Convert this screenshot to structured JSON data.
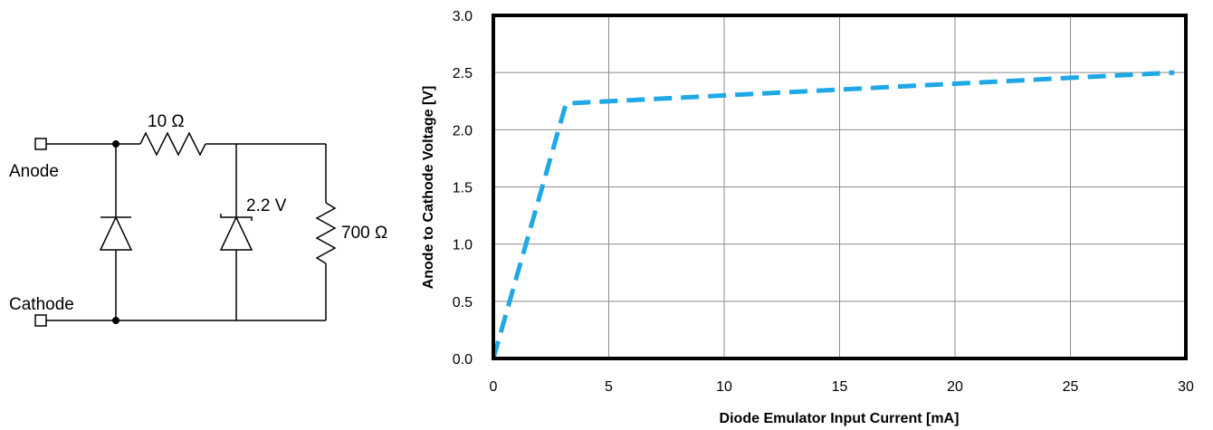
{
  "circuit": {
    "anode_label": "Anode",
    "cathode_label": "Cathode",
    "series_resistor_label": "10 Ω",
    "zener_label": "2.2 V",
    "shunt_resistor_label": "700 Ω"
  },
  "chart_data": {
    "type": "line",
    "xlabel": "Diode Emulator Input Current [mA]",
    "ylabel": "Anode to Cathode Voltage [V]",
    "xlim": [
      0,
      30
    ],
    "ylim": [
      0,
      3.0
    ],
    "x_ticks": [
      0,
      5,
      10,
      15,
      20,
      25,
      30
    ],
    "x_tick_labels": [
      "0",
      "5",
      "10",
      "15",
      "20",
      "25",
      "30"
    ],
    "y_ticks": [
      0,
      0.5,
      1.0,
      1.5,
      2.0,
      2.5,
      3.0
    ],
    "y_tick_labels": [
      "0.0",
      "0.5",
      "1.0",
      "1.5",
      "2.0",
      "2.5",
      "3.0"
    ],
    "grid": true,
    "line_style": "dashed",
    "series": [
      {
        "color": "#1FA8E6",
        "x": [
          0,
          3.15,
          29.5
        ],
        "y": [
          0,
          2.23,
          2.5
        ]
      }
    ]
  }
}
